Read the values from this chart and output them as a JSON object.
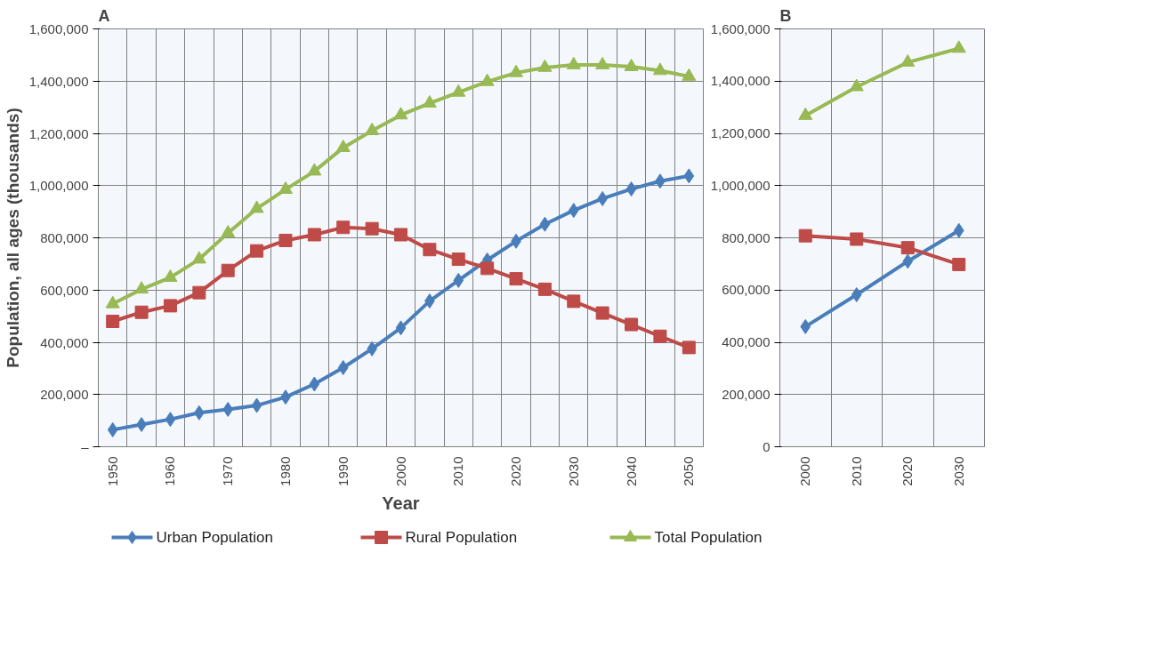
{
  "chart_data": [
    {
      "type": "line",
      "annotations": [
        "A"
      ],
      "xlabel": "Year",
      "ylabel": "Population, all ages (thousands)",
      "categories": [
        "1950",
        null,
        "1960",
        null,
        "1970",
        null,
        "1980",
        null,
        "1990",
        null,
        "2000",
        null,
        "2010",
        null,
        "2020",
        null,
        "2030",
        null,
        "2040",
        null,
        "2050"
      ],
      "ylim": [
        0,
        1600000
      ],
      "yticks": [
        {
          "value": 0,
          "label": "–"
        },
        {
          "value": 200000,
          "label": "200,000"
        },
        {
          "value": 400000,
          "label": "400,000"
        },
        {
          "value": 600000,
          "label": "600,000"
        },
        {
          "value": 800000,
          "label": "800,000"
        },
        {
          "value": 1000000,
          "label": "1,000,000"
        },
        {
          "value": 1200000,
          "label": "1,200,000"
        },
        {
          "value": 1400000,
          "label": "1,400,000"
        },
        {
          "value": 1600000,
          "label": "1,600,000"
        }
      ],
      "grid": true,
      "legend": "bottom",
      "line_style": "solid",
      "series": [
        {
          "name": "Urban Population",
          "color": "#4a7ebb",
          "marker": "diamond",
          "values": [
            65000,
            85000,
            105000,
            130000,
            143000,
            158000,
            190000,
            240000,
            303000,
            375000,
            455000,
            558000,
            637000,
            715000,
            787000,
            852000,
            905000,
            950000,
            987000,
            1017000,
            1037000
          ]
        },
        {
          "name": "Rural Population",
          "color": "#be4b48",
          "marker": "square",
          "values": [
            480000,
            515000,
            540000,
            590000,
            675000,
            750000,
            790000,
            812000,
            840000,
            835000,
            812000,
            755000,
            718000,
            683000,
            643000,
            603000,
            557000,
            512000,
            468000,
            423000,
            380000
          ]
        },
        {
          "name": "Total Population",
          "color": "#98b954",
          "marker": "triangle",
          "values": [
            547000,
            603000,
            648000,
            718000,
            818000,
            912000,
            985000,
            1055000,
            1145000,
            1210000,
            1270000,
            1315000,
            1357000,
            1398000,
            1432000,
            1452000,
            1462000,
            1462000,
            1455000,
            1440000,
            1418000
          ]
        }
      ]
    },
    {
      "type": "line",
      "annotations": [
        "B"
      ],
      "categories": [
        "2000",
        "2010",
        "2020",
        "2030"
      ],
      "ylim": [
        0,
        1600000
      ],
      "yticks": [
        0,
        {
          "value": 200000,
          "label": "200,000"
        },
        {
          "value": 400000,
          "label": "400,000"
        },
        {
          "value": 600000,
          "label": "600,000"
        },
        {
          "value": 800000,
          "label": "800,000"
        },
        {
          "value": 1000000,
          "label": "1,000,000"
        },
        {
          "value": 1200000,
          "label": "1,200,000"
        },
        {
          "value": 1400000,
          "label": "1,400,000"
        },
        {
          "value": 1600000,
          "label": "1,600,000"
        }
      ],
      "grid": true,
      "line_style": "solid",
      "series": [
        {
          "color": "#4a7ebb",
          "marker": "diamond",
          "values": [
            460000,
            582000,
            710000,
            828000
          ]
        },
        {
          "color": "#be4b48",
          "marker": "square",
          "values": [
            808000,
            795000,
            762000,
            698000
          ]
        },
        {
          "color": "#98b954",
          "marker": "triangle",
          "values": [
            1268000,
            1378000,
            1472000,
            1525000
          ]
        }
      ]
    }
  ]
}
